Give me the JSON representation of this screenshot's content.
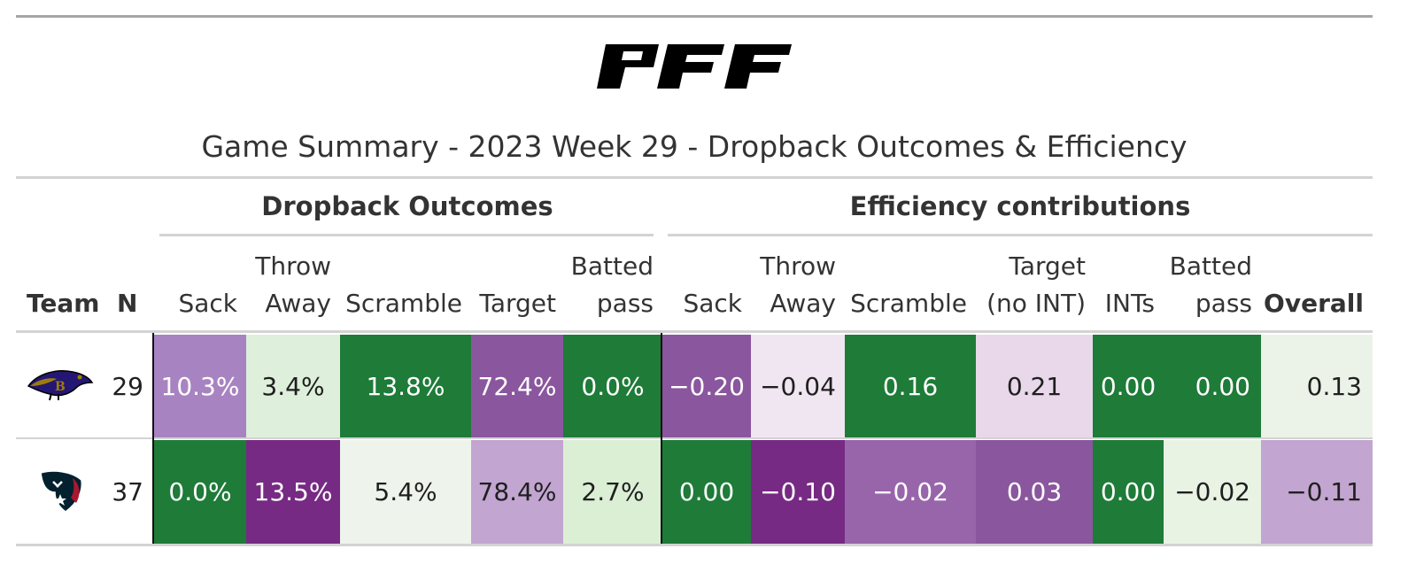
{
  "header": {
    "logo_text": "PFF",
    "title": "Game Summary - 2023 Week 29 - Dropback Outcomes & Efficiency"
  },
  "spanners": {
    "outcomes": "Dropback Outcomes",
    "efficiency": "Efficiency contributions"
  },
  "columns": {
    "team": "Team",
    "n": "N",
    "o_sack": "Sack",
    "o_throwaway": "Throw\nAway",
    "o_scramble": "Scramble",
    "o_target": "Target",
    "o_batted": "Batted\npass",
    "e_sack": "Sack",
    "e_throwaway": "Throw\nAway",
    "e_scramble": "Scramble",
    "e_target": "Target\n(no INT)",
    "e_ints": "INTs",
    "e_batted": "Batted\npass",
    "e_overall": "Overall"
  },
  "rows": [
    {
      "team_logo": "ravens-logo",
      "n": "29",
      "cells": [
        "10.3%",
        "3.4%",
        "13.8%",
        "72.4%",
        "0.0%",
        "−0.20",
        "−0.04",
        "0.16",
        "0.21",
        "0.00",
        "0.00",
        "0.13"
      ],
      "colors": [
        "#a883c1",
        "#deefdb",
        "#1e7b38",
        "#8a569e",
        "#1e7b38",
        "#8a569e",
        "#f0e6f1",
        "#1e7b38",
        "#e8d8ea",
        "#1e7b38",
        "#1e7b38",
        "#ebf3e8"
      ],
      "text_colors": [
        "#ffffff",
        "#1f1f1f",
        "#ffffff",
        "#ffffff",
        "#ffffff",
        "#ffffff",
        "#1f1f1f",
        "#ffffff",
        "#1f1f1f",
        "#ffffff",
        "#ffffff",
        "#1f1f1f"
      ]
    },
    {
      "team_logo": "texans-logo",
      "n": "37",
      "cells": [
        "0.0%",
        "13.5%",
        "5.4%",
        "78.4%",
        "2.7%",
        "0.00",
        "−0.10",
        "−0.02",
        "0.03",
        "0.00",
        "−0.02",
        "−0.11"
      ],
      "colors": [
        "#1e7b38",
        "#762a83",
        "#eef4ec",
        "#c2a5d0",
        "#dbefd5",
        "#1e7b38",
        "#762a83",
        "#9865ab",
        "#8a569e",
        "#1e7b38",
        "#e8f3e4",
        "#c2a5d0"
      ],
      "text_colors": [
        "#ffffff",
        "#ffffff",
        "#1f1f1f",
        "#1f1f1f",
        "#1f1f1f",
        "#ffffff",
        "#ffffff",
        "#ffffff",
        "#ffffff",
        "#ffffff",
        "#1f1f1f",
        "#1f1f1f"
      ]
    }
  ],
  "chart_data": {
    "type": "table",
    "title": "Game Summary - 2023 Week 29 - Dropback Outcomes & Efficiency",
    "column_groups": [
      {
        "name": "Dropback Outcomes",
        "columns": [
          "Sack",
          "Throw Away",
          "Scramble",
          "Target",
          "Batted pass"
        ]
      },
      {
        "name": "Efficiency contributions",
        "columns": [
          "Sack",
          "Throw Away",
          "Scramble",
          "Target (no INT)",
          "INTs",
          "Batted pass",
          "Overall"
        ]
      }
    ],
    "rows": [
      {
        "team": "ravens-logo",
        "N": 29,
        "dropback_outcomes_pct": [
          10.3,
          3.4,
          13.8,
          72.4,
          0.0
        ],
        "efficiency": [
          -0.2,
          -0.04,
          0.16,
          0.21,
          0.0,
          0.0,
          0.13
        ]
      },
      {
        "team": "texans-logo",
        "N": 37,
        "dropback_outcomes_pct": [
          0.0,
          13.5,
          5.4,
          78.4,
          2.7
        ],
        "efficiency": [
          0.0,
          -0.1,
          -0.02,
          0.03,
          0.0,
          -0.02,
          -0.11
        ]
      }
    ]
  }
}
